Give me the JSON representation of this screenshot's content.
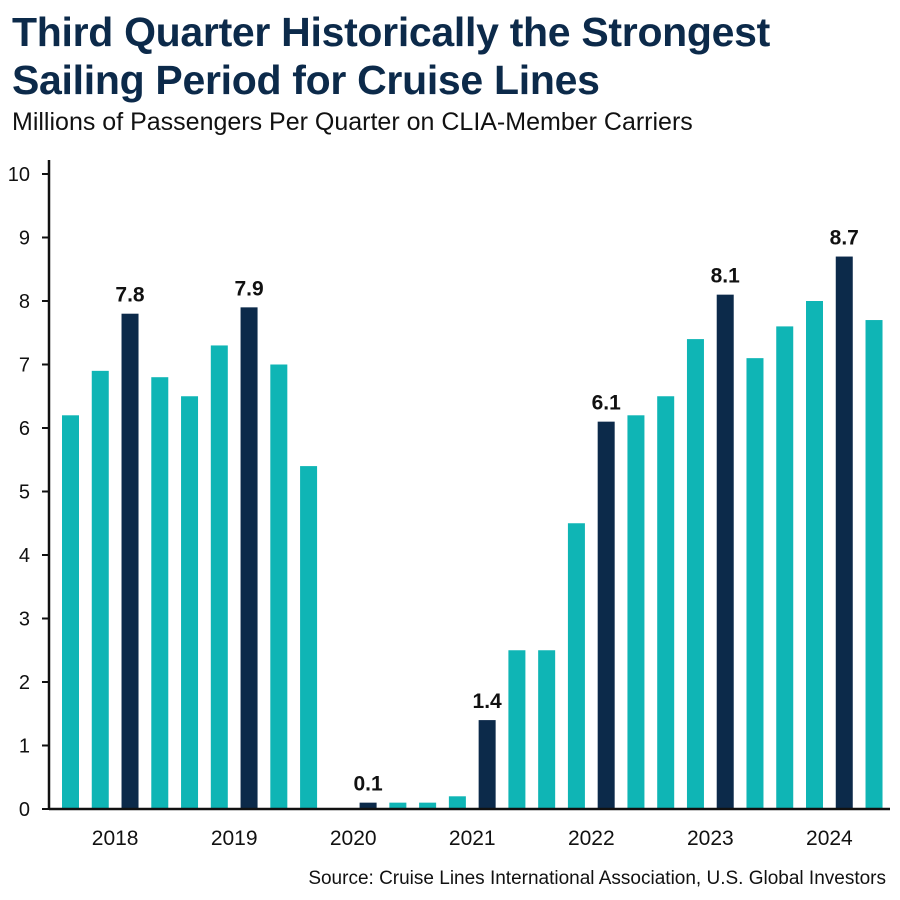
{
  "title_lines": [
    "Third Quarter Historically the Strongest",
    "Sailing Period for Cruise Lines"
  ],
  "subtitle": "Millions of Passengers Per Quarter on CLIA-Member Carriers",
  "source": "Source: Cruise Lines International Association, U.S. Global Investors",
  "colors": {
    "regular": "#0fb5b5",
    "highlight": "#0c2a4a",
    "axis": "#111111",
    "title": "#0c2a4a"
  },
  "chart_data": {
    "type": "bar",
    "title": "Third Quarter Historically the Strongest Sailing Period for Cruise Lines",
    "ylabel": "Millions of Passengers Per Quarter",
    "xlabel": "",
    "ylim": [
      0,
      10
    ],
    "yticks": [
      0,
      1,
      2,
      3,
      4,
      5,
      6,
      7,
      8,
      9,
      10
    ],
    "grid": false,
    "years": [
      "2018",
      "2019",
      "2020",
      "2021",
      "2022",
      "2023",
      "2024"
    ],
    "categories": [
      "2018 Q1",
      "2018 Q2",
      "2018 Q3",
      "2018 Q4",
      "2019 Q1",
      "2019 Q2",
      "2019 Q3",
      "2019 Q4",
      "2020 Q1",
      "2020 Q2",
      "2020 Q3",
      "2020 Q4",
      "2021 Q1",
      "2021 Q2",
      "2021 Q3",
      "2021 Q4",
      "2022 Q1",
      "2022 Q2",
      "2022 Q3",
      "2022 Q4",
      "2023 Q1",
      "2023 Q2",
      "2023 Q3",
      "2023 Q4",
      "2024 Q1",
      "2024 Q2",
      "2024 Q3",
      "2024 Q4"
    ],
    "values": [
      6.2,
      6.9,
      7.8,
      6.8,
      6.5,
      7.3,
      7.9,
      7.0,
      5.4,
      0.0,
      0.1,
      0.1,
      0.1,
      0.2,
      1.4,
      2.5,
      2.5,
      4.5,
      6.1,
      6.2,
      6.5,
      7.4,
      8.1,
      7.1,
      7.6,
      8.0,
      8.7,
      7.7
    ],
    "highlighted": [
      false,
      false,
      true,
      false,
      false,
      false,
      true,
      false,
      false,
      false,
      true,
      false,
      false,
      false,
      true,
      false,
      false,
      false,
      true,
      false,
      false,
      false,
      true,
      false,
      false,
      false,
      true,
      false
    ],
    "data_labels": [
      "",
      "",
      "7.8",
      "",
      "",
      "",
      "7.9",
      "",
      "",
      "",
      "0.1",
      "",
      "",
      "",
      "1.4",
      "",
      "",
      "",
      "6.1",
      "",
      "",
      "",
      "8.1",
      "",
      "",
      "",
      "8.7",
      ""
    ]
  }
}
